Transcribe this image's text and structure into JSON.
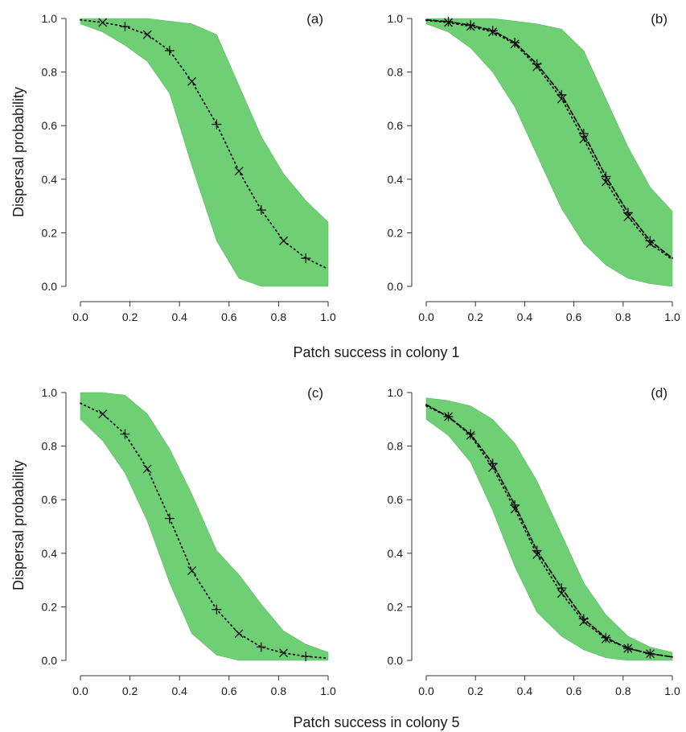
{
  "figure": {
    "ylabel_top": "Dispersal probability",
    "ylabel_bottom": "Dispersal probability",
    "xlabel_top": "Patch success in colony 1",
    "xlabel_bottom": "Patch success in colony 5"
  },
  "colors": {
    "band": "#6fcf74",
    "band_edge": "#5cb862",
    "line": "#111111",
    "axis": "#333333"
  },
  "chart_data": [
    {
      "type": "line",
      "panel_label": "(a)",
      "xlim": [
        0,
        1
      ],
      "ylim": [
        0,
        1
      ],
      "xticks": [
        "0.0",
        "0.2",
        "0.4",
        "0.6",
        "0.8",
        "1.0"
      ],
      "yticks": [
        "0.0",
        "0.2",
        "0.4",
        "0.6",
        "0.8",
        "1.0"
      ],
      "xlabel": "",
      "ylabel": "Dispersal probability",
      "grid": false,
      "band": {
        "x": [
          0,
          0.09,
          0.18,
          0.27,
          0.36,
          0.45,
          0.55,
          0.64,
          0.73,
          0.82,
          0.91,
          1.0
        ],
        "upper": [
          1.0,
          1.0,
          1.0,
          1.0,
          0.99,
          0.98,
          0.94,
          0.75,
          0.56,
          0.42,
          0.32,
          0.24
        ],
        "lower": [
          0.98,
          0.95,
          0.9,
          0.84,
          0.72,
          0.45,
          0.17,
          0.03,
          0.0,
          0.0,
          0.0,
          0.0
        ]
      },
      "series": [
        {
          "style": "dotted",
          "marker": "mixed",
          "x": [
            0,
            0.09,
            0.18,
            0.27,
            0.36,
            0.45,
            0.55,
            0.64,
            0.73,
            0.82,
            0.91,
            1.0
          ],
          "y": [
            0.995,
            0.985,
            0.97,
            0.94,
            0.88,
            0.765,
            0.605,
            0.43,
            0.285,
            0.17,
            0.105,
            0.065
          ]
        }
      ]
    },
    {
      "type": "line",
      "panel_label": "(b)",
      "xlim": [
        0,
        1
      ],
      "ylim": [
        0,
        1
      ],
      "xticks": [
        "0.0",
        "0.2",
        "0.4",
        "0.6",
        "0.8",
        "1.0"
      ],
      "yticks": [
        "0.0",
        "0.2",
        "0.4",
        "0.6",
        "0.8",
        "1.0"
      ],
      "xlabel": "",
      "ylabel": "",
      "grid": false,
      "band": {
        "x": [
          0,
          0.09,
          0.18,
          0.27,
          0.36,
          0.45,
          0.55,
          0.64,
          0.73,
          0.82,
          0.91,
          1.0
        ],
        "upper": [
          1.0,
          1.0,
          1.0,
          1.0,
          0.99,
          0.98,
          0.96,
          0.88,
          0.7,
          0.52,
          0.37,
          0.28
        ],
        "lower": [
          0.98,
          0.95,
          0.89,
          0.8,
          0.67,
          0.49,
          0.29,
          0.16,
          0.08,
          0.03,
          0.01,
          0.0
        ]
      },
      "series": [
        {
          "style": "dotted",
          "marker": "x",
          "x": [
            0,
            0.09,
            0.18,
            0.27,
            0.36,
            0.45,
            0.55,
            0.64,
            0.73,
            0.82,
            0.91,
            1.0
          ],
          "y": [
            0.993,
            0.985,
            0.97,
            0.95,
            0.905,
            0.82,
            0.7,
            0.55,
            0.39,
            0.26,
            0.16,
            0.1
          ]
        },
        {
          "style": "dashed",
          "marker": "plus",
          "x": [
            0,
            0.09,
            0.18,
            0.27,
            0.36,
            0.45,
            0.55,
            0.64,
            0.73,
            0.82,
            0.91,
            1.0
          ],
          "y": [
            0.995,
            0.988,
            0.975,
            0.955,
            0.91,
            0.83,
            0.715,
            0.57,
            0.41,
            0.275,
            0.17,
            0.105
          ]
        }
      ]
    },
    {
      "type": "line",
      "panel_label": "(c)",
      "xlim": [
        0,
        1
      ],
      "ylim": [
        0,
        1
      ],
      "xticks": [
        "0.0",
        "0.2",
        "0.4",
        "0.6",
        "0.8",
        "1.0"
      ],
      "yticks": [
        "0.0",
        "0.2",
        "0.4",
        "0.6",
        "0.8",
        "1.0"
      ],
      "xlabel": "",
      "ylabel": "Dispersal probability",
      "grid": false,
      "band": {
        "x": [
          0,
          0.09,
          0.18,
          0.27,
          0.36,
          0.45,
          0.55,
          0.64,
          0.73,
          0.82,
          0.91,
          1.0
        ],
        "upper": [
          1.0,
          1.0,
          0.99,
          0.92,
          0.79,
          0.62,
          0.41,
          0.32,
          0.21,
          0.11,
          0.06,
          0.03
        ],
        "lower": [
          0.9,
          0.82,
          0.7,
          0.52,
          0.29,
          0.1,
          0.02,
          0.0,
          0.0,
          0.0,
          0.0,
          0.0
        ]
      },
      "series": [
        {
          "style": "dotted",
          "marker": "mixed",
          "x": [
            0,
            0.09,
            0.18,
            0.27,
            0.36,
            0.45,
            0.55,
            0.64,
            0.73,
            0.82,
            0.91,
            1.0
          ],
          "y": [
            0.96,
            0.92,
            0.845,
            0.715,
            0.53,
            0.335,
            0.19,
            0.1,
            0.05,
            0.028,
            0.015,
            0.008
          ]
        }
      ]
    },
    {
      "type": "line",
      "panel_label": "(d)",
      "xlim": [
        0,
        1
      ],
      "ylim": [
        0,
        1
      ],
      "xticks": [
        "0.0",
        "0.2",
        "0.4",
        "0.6",
        "0.8",
        "1.0"
      ],
      "yticks": [
        "0.0",
        "0.2",
        "0.4",
        "0.6",
        "0.8",
        "1.0"
      ],
      "xlabel": "",
      "ylabel": "",
      "grid": false,
      "band": {
        "x": [
          0,
          0.09,
          0.18,
          0.27,
          0.36,
          0.45,
          0.55,
          0.64,
          0.73,
          0.82,
          0.91,
          1.0
        ],
        "upper": [
          0.98,
          0.97,
          0.95,
          0.9,
          0.81,
          0.67,
          0.47,
          0.29,
          0.17,
          0.09,
          0.05,
          0.03
        ],
        "lower": [
          0.9,
          0.84,
          0.74,
          0.56,
          0.35,
          0.18,
          0.09,
          0.04,
          0.01,
          0.0,
          0.0,
          0.0
        ]
      },
      "series": [
        {
          "style": "dotted",
          "marker": "x",
          "x": [
            0,
            0.09,
            0.18,
            0.27,
            0.36,
            0.45,
            0.55,
            0.64,
            0.73,
            0.82,
            0.91,
            1.0
          ],
          "y": [
            0.95,
            0.91,
            0.84,
            0.72,
            0.565,
            0.395,
            0.25,
            0.145,
            0.08,
            0.045,
            0.025,
            0.013
          ]
        },
        {
          "style": "dashed",
          "marker": "plus",
          "x": [
            0,
            0.09,
            0.18,
            0.27,
            0.36,
            0.45,
            0.55,
            0.64,
            0.73,
            0.82,
            0.91,
            1.0
          ],
          "y": [
            0.955,
            0.91,
            0.845,
            0.735,
            0.58,
            0.41,
            0.27,
            0.155,
            0.085,
            0.045,
            0.025,
            0.013
          ]
        }
      ]
    }
  ]
}
